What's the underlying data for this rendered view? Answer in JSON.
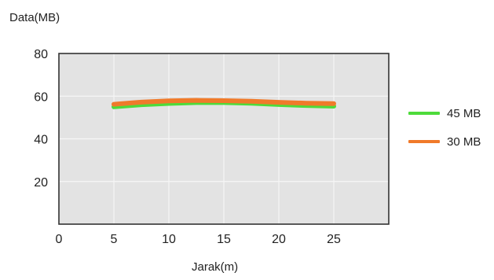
{
  "chart_data": {
    "type": "line",
    "xlabel": "Jarak(m)",
    "ylabel": "Data(MB)",
    "xlim": [
      0,
      30
    ],
    "ylim": [
      0,
      80
    ],
    "xticks": [
      0,
      5,
      10,
      15,
      20,
      25
    ],
    "yticks": [
      20,
      40,
      60,
      80
    ],
    "grid": true,
    "legend_position": "right",
    "series": [
      {
        "name": "45 MB",
        "color": "#4ddb3a",
        "x": [
          5,
          7.5,
          10,
          12.5,
          15,
          17.5,
          20,
          22.5,
          25
        ],
        "y": [
          55,
          56,
          56.6,
          57,
          57,
          56.7,
          56.1,
          55.6,
          55.3
        ]
      },
      {
        "name": "30 MB",
        "color": "#f07a2a",
        "x": [
          5,
          7.5,
          10,
          12.5,
          15,
          17.5,
          20,
          22.5,
          25
        ],
        "y": [
          56.2,
          57.2,
          57.8,
          58,
          57.9,
          57.6,
          57.1,
          56.7,
          56.5
        ]
      }
    ]
  }
}
